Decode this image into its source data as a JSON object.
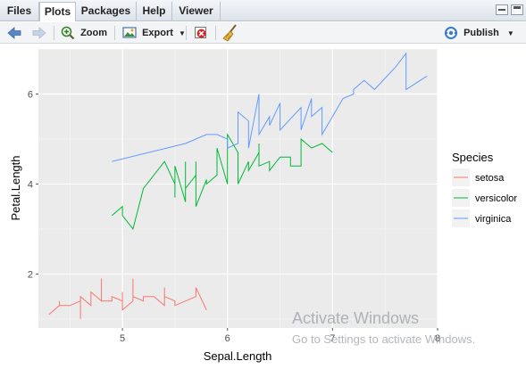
{
  "tabs": [
    {
      "label": "Files"
    },
    {
      "label": "Plots"
    },
    {
      "label": "Packages"
    },
    {
      "label": "Help"
    },
    {
      "label": "Viewer"
    }
  ],
  "active_tab": "Plots",
  "toolbar": {
    "zoom_label": "Zoom",
    "export_label": "Export",
    "publish_label": "Publish"
  },
  "icons": {
    "back": "arrow-left-icon",
    "forward": "arrow-right-icon",
    "zoom": "magnifier-plus-icon",
    "export": "image-export-icon",
    "remove": "remove-plot-icon",
    "clear": "broom-icon",
    "publish": "publish-icon"
  },
  "colors": {
    "setosa": "#F8766D",
    "versicolor": "#00BA38",
    "virginica": "#619CFF",
    "panel": "#EBEBEB"
  },
  "chart_data": {
    "type": "line",
    "xlabel": "Sepal.Length",
    "ylabel": "Petal.Length",
    "xlim": [
      4.2,
      8.0
    ],
    "ylim": [
      0.8,
      7.0
    ],
    "x_ticks": [
      5,
      6,
      7,
      8
    ],
    "y_ticks": [
      2,
      4,
      6
    ],
    "grid": true,
    "legend_title": "Species",
    "legend_position": "right",
    "series": [
      {
        "name": "setosa",
        "points": [
          [
            4.3,
            1.1
          ],
          [
            4.4,
            1.3
          ],
          [
            4.4,
            1.4
          ],
          [
            4.4,
            1.3
          ],
          [
            4.5,
            1.3
          ],
          [
            4.6,
            1.4
          ],
          [
            4.6,
            1.0
          ],
          [
            4.6,
            1.5
          ],
          [
            4.7,
            1.3
          ],
          [
            4.7,
            1.6
          ],
          [
            4.8,
            1.4
          ],
          [
            4.8,
            1.9
          ],
          [
            4.8,
            1.4
          ],
          [
            4.9,
            1.4
          ],
          [
            4.9,
            1.5
          ],
          [
            5.0,
            1.4
          ],
          [
            5.0,
            1.6
          ],
          [
            5.0,
            1.2
          ],
          [
            5.1,
            1.4
          ],
          [
            5.1,
            1.9
          ],
          [
            5.1,
            1.5
          ],
          [
            5.2,
            1.4
          ],
          [
            5.2,
            1.5
          ],
          [
            5.3,
            1.5
          ],
          [
            5.4,
            1.3
          ],
          [
            5.4,
            1.7
          ],
          [
            5.4,
            1.5
          ],
          [
            5.5,
            1.4
          ],
          [
            5.5,
            1.3
          ],
          [
            5.7,
            1.5
          ],
          [
            5.7,
            1.7
          ],
          [
            5.8,
            1.2
          ]
        ]
      },
      {
        "name": "versicolor",
        "points": [
          [
            4.9,
            3.3
          ],
          [
            5.0,
            3.5
          ],
          [
            5.0,
            3.3
          ],
          [
            5.1,
            3.0
          ],
          [
            5.2,
            3.9
          ],
          [
            5.4,
            4.5
          ],
          [
            5.5,
            4.0
          ],
          [
            5.5,
            3.7
          ],
          [
            5.5,
            4.4
          ],
          [
            5.6,
            3.6
          ],
          [
            5.6,
            4.5
          ],
          [
            5.6,
            3.9
          ],
          [
            5.7,
            4.2
          ],
          [
            5.7,
            4.5
          ],
          [
            5.7,
            3.5
          ],
          [
            5.8,
            4.1
          ],
          [
            5.8,
            4.0
          ],
          [
            5.9,
            4.2
          ],
          [
            5.9,
            4.8
          ],
          [
            6.0,
            4.0
          ],
          [
            6.0,
            4.5
          ],
          [
            6.0,
            5.1
          ],
          [
            6.1,
            4.7
          ],
          [
            6.1,
            4.0
          ],
          [
            6.2,
            4.5
          ],
          [
            6.2,
            4.3
          ],
          [
            6.3,
            4.7
          ],
          [
            6.3,
            4.9
          ],
          [
            6.3,
            4.4
          ],
          [
            6.4,
            4.5
          ],
          [
            6.4,
            4.3
          ],
          [
            6.5,
            4.6
          ],
          [
            6.6,
            4.6
          ],
          [
            6.6,
            4.4
          ],
          [
            6.7,
            4.4
          ],
          [
            6.7,
            4.7
          ],
          [
            6.7,
            5.0
          ],
          [
            6.8,
            4.8
          ],
          [
            6.9,
            4.9
          ],
          [
            7.0,
            4.7
          ]
        ]
      },
      {
        "name": "virginica",
        "points": [
          [
            4.9,
            4.5
          ],
          [
            5.6,
            4.9
          ],
          [
            5.7,
            5.0
          ],
          [
            5.8,
            5.1
          ],
          [
            5.8,
            5.1
          ],
          [
            5.9,
            5.1
          ],
          [
            6.0,
            5.0
          ],
          [
            6.0,
            4.8
          ],
          [
            6.1,
            4.9
          ],
          [
            6.1,
            5.6
          ],
          [
            6.2,
            5.4
          ],
          [
            6.2,
            4.8
          ],
          [
            6.3,
            6.0
          ],
          [
            6.3,
            5.6
          ],
          [
            6.3,
            5.1
          ],
          [
            6.4,
            5.5
          ],
          [
            6.4,
            5.3
          ],
          [
            6.5,
            5.8
          ],
          [
            6.5,
            5.5
          ],
          [
            6.5,
            5.2
          ],
          [
            6.7,
            5.7
          ],
          [
            6.7,
            5.2
          ],
          [
            6.8,
            5.9
          ],
          [
            6.8,
            5.5
          ],
          [
            6.9,
            5.7
          ],
          [
            6.9,
            5.1
          ],
          [
            7.1,
            5.9
          ],
          [
            7.2,
            6.0
          ],
          [
            7.2,
            6.1
          ],
          [
            7.3,
            6.3
          ],
          [
            7.4,
            6.1
          ],
          [
            7.6,
            6.6
          ],
          [
            7.7,
            6.9
          ],
          [
            7.7,
            6.1
          ],
          [
            7.9,
            6.4
          ]
        ]
      }
    ]
  },
  "watermark": {
    "line1": "Activate Windows",
    "line2": "Go to Settings to activate Windows."
  }
}
